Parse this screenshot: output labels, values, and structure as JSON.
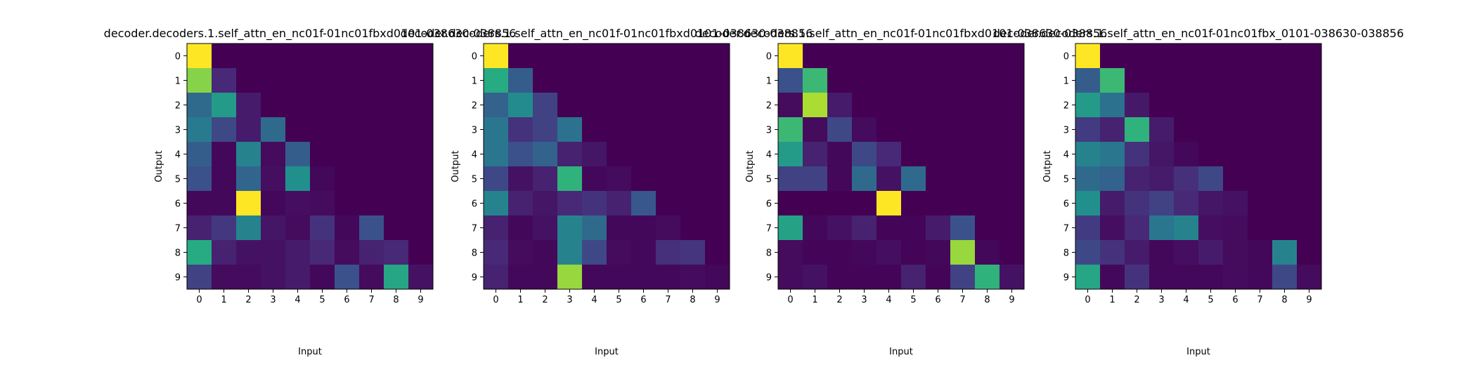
{
  "figure": {
    "panels": [
      {
        "title": "decoder.decoders.1.self_attn_en_nc01f-01nc01fbxd0101-038630-038856",
        "xlabel": "Input",
        "ylabel": "Output"
      },
      {
        "title": "decoder.decoders.1.self_attn_en_nc01f-01nc01fbxd0101-038630-038856",
        "xlabel": "Input",
        "ylabel": "Output"
      },
      {
        "title": "decoder.decoders.1.self_attn_en_nc01f-01nc01fbxd0101-038630-038856",
        "xlabel": "Input",
        "ylabel": "Output"
      },
      {
        "title": "decoder.decoders.1.self_attn_en_nc01f-01nc01fbx_0101-038630-038856",
        "xlabel": "Input",
        "ylabel": "Output"
      }
    ]
  },
  "chart_data": [
    {
      "type": "heatmap",
      "title": "decoder.decoders.1.self_attn_en_nc01f-01nc01fbxd0101-038630-038856",
      "xlabel": "Input",
      "ylabel": "Output",
      "x": [
        0,
        1,
        2,
        3,
        4,
        5,
        6,
        7,
        8,
        9
      ],
      "y": [
        0,
        1,
        2,
        3,
        4,
        5,
        6,
        7,
        8,
        9
      ],
      "colormap": "viridis",
      "values": [
        [
          1.0,
          0.0,
          0.0,
          0.0,
          0.0,
          0.0,
          0.0,
          0.0,
          0.0,
          0.0
        ],
        [
          0.82,
          0.12,
          0.0,
          0.0,
          0.0,
          0.0,
          0.0,
          0.0,
          0.0,
          0.0
        ],
        [
          0.35,
          0.55,
          0.08,
          0.0,
          0.0,
          0.0,
          0.0,
          0.0,
          0.0,
          0.0
        ],
        [
          0.42,
          0.22,
          0.08,
          0.35,
          0.0,
          0.0,
          0.0,
          0.0,
          0.0,
          0.0
        ],
        [
          0.3,
          0.02,
          0.45,
          0.03,
          0.3,
          0.0,
          0.0,
          0.0,
          0.0,
          0.0
        ],
        [
          0.25,
          0.02,
          0.33,
          0.04,
          0.5,
          0.02,
          0.0,
          0.0,
          0.0,
          0.0
        ],
        [
          0.02,
          0.02,
          1.0,
          0.02,
          0.04,
          0.03,
          0.0,
          0.0,
          0.0,
          0.0
        ],
        [
          0.1,
          0.17,
          0.45,
          0.06,
          0.03,
          0.15,
          0.02,
          0.25,
          0.0,
          0.0
        ],
        [
          0.62,
          0.1,
          0.05,
          0.05,
          0.08,
          0.12,
          0.03,
          0.1,
          0.12,
          0.0
        ],
        [
          0.2,
          0.03,
          0.03,
          0.05,
          0.08,
          0.02,
          0.25,
          0.03,
          0.6,
          0.05
        ]
      ]
    },
    {
      "type": "heatmap",
      "title": "decoder.decoders.1.self_attn_en_nc01f-01nc01fbxd0101-038630-038856",
      "xlabel": "Input",
      "ylabel": "Output",
      "x": [
        0,
        1,
        2,
        3,
        4,
        5,
        6,
        7,
        8,
        9
      ],
      "y": [
        0,
        1,
        2,
        3,
        4,
        5,
        6,
        7,
        8,
        9
      ],
      "colormap": "viridis",
      "values": [
        [
          1.0,
          0.0,
          0.0,
          0.0,
          0.0,
          0.0,
          0.0,
          0.0,
          0.0,
          0.0
        ],
        [
          0.62,
          0.3,
          0.0,
          0.0,
          0.0,
          0.0,
          0.0,
          0.0,
          0.0,
          0.0
        ],
        [
          0.32,
          0.48,
          0.2,
          0.0,
          0.0,
          0.0,
          0.0,
          0.0,
          0.0,
          0.0
        ],
        [
          0.4,
          0.15,
          0.2,
          0.38,
          0.0,
          0.0,
          0.0,
          0.0,
          0.0,
          0.0
        ],
        [
          0.4,
          0.25,
          0.32,
          0.1,
          0.06,
          0.0,
          0.0,
          0.0,
          0.0,
          0.0
        ],
        [
          0.22,
          0.05,
          0.1,
          0.65,
          0.02,
          0.03,
          0.0,
          0.0,
          0.0,
          0.0
        ],
        [
          0.45,
          0.1,
          0.06,
          0.12,
          0.15,
          0.1,
          0.28,
          0.0,
          0.0,
          0.0
        ],
        [
          0.1,
          0.02,
          0.05,
          0.45,
          0.35,
          0.02,
          0.02,
          0.03,
          0.0,
          0.0
        ],
        [
          0.12,
          0.03,
          0.02,
          0.45,
          0.22,
          0.03,
          0.02,
          0.14,
          0.16,
          0.0
        ],
        [
          0.1,
          0.02,
          0.02,
          0.85,
          0.02,
          0.02,
          0.02,
          0.02,
          0.03,
          0.02
        ]
      ]
    },
    {
      "type": "heatmap",
      "title": "decoder.decoders.1.self_attn_en_nc01f-01nc01fbxd0101-038630-038856",
      "xlabel": "Input",
      "ylabel": "Output",
      "x": [
        0,
        1,
        2,
        3,
        4,
        5,
        6,
        7,
        8,
        9
      ],
      "y": [
        0,
        1,
        2,
        3,
        4,
        5,
        6,
        7,
        8,
        9
      ],
      "colormap": "viridis",
      "values": [
        [
          1.0,
          0.0,
          0.0,
          0.0,
          0.0,
          0.0,
          0.0,
          0.0,
          0.0,
          0.0
        ],
        [
          0.25,
          0.68,
          0.0,
          0.0,
          0.0,
          0.0,
          0.0,
          0.0,
          0.0,
          0.0
        ],
        [
          0.03,
          0.88,
          0.08,
          0.0,
          0.0,
          0.0,
          0.0,
          0.0,
          0.0,
          0.0
        ],
        [
          0.68,
          0.03,
          0.22,
          0.03,
          0.0,
          0.0,
          0.0,
          0.0,
          0.0,
          0.0
        ],
        [
          0.55,
          0.1,
          0.02,
          0.22,
          0.12,
          0.0,
          0.0,
          0.0,
          0.0,
          0.0
        ],
        [
          0.2,
          0.2,
          0.02,
          0.35,
          0.05,
          0.35,
          0.0,
          0.0,
          0.0,
          0.0
        ],
        [
          0.0,
          0.0,
          0.0,
          0.0,
          1.0,
          0.0,
          0.0,
          0.0,
          0.0,
          0.0
        ],
        [
          0.58,
          0.02,
          0.05,
          0.1,
          0.01,
          0.01,
          0.08,
          0.25,
          0.0,
          0.0
        ],
        [
          0.03,
          0.01,
          0.01,
          0.02,
          0.04,
          0.01,
          0.02,
          0.85,
          0.02,
          0.0
        ],
        [
          0.03,
          0.05,
          0.01,
          0.01,
          0.01,
          0.1,
          0.01,
          0.2,
          0.65,
          0.05
        ]
      ]
    },
    {
      "type": "heatmap",
      "title": "decoder.decoders.1.self_attn_en_nc01f-01nc01fbx_0101-038630-038856",
      "xlabel": "Input",
      "ylabel": "Output",
      "x": [
        0,
        1,
        2,
        3,
        4,
        5,
        6,
        7,
        8,
        9
      ],
      "y": [
        0,
        1,
        2,
        3,
        4,
        5,
        6,
        7,
        8,
        9
      ],
      "colormap": "viridis",
      "values": [
        [
          1.0,
          0.0,
          0.0,
          0.0,
          0.0,
          0.0,
          0.0,
          0.0,
          0.0,
          0.0
        ],
        [
          0.3,
          0.68,
          0.0,
          0.0,
          0.0,
          0.0,
          0.0,
          0.0,
          0.0,
          0.0
        ],
        [
          0.55,
          0.38,
          0.07,
          0.0,
          0.0,
          0.0,
          0.0,
          0.0,
          0.0,
          0.0
        ],
        [
          0.18,
          0.1,
          0.65,
          0.08,
          0.0,
          0.0,
          0.0,
          0.0,
          0.0,
          0.0
        ],
        [
          0.45,
          0.4,
          0.15,
          0.06,
          0.02,
          0.0,
          0.0,
          0.0,
          0.0,
          0.0
        ],
        [
          0.35,
          0.32,
          0.1,
          0.08,
          0.14,
          0.22,
          0.0,
          0.0,
          0.0,
          0.0
        ],
        [
          0.5,
          0.08,
          0.15,
          0.2,
          0.12,
          0.06,
          0.05,
          0.0,
          0.0,
          0.0
        ],
        [
          0.18,
          0.04,
          0.12,
          0.4,
          0.45,
          0.04,
          0.03,
          0.0,
          0.0,
          0.0
        ],
        [
          0.22,
          0.15,
          0.08,
          0.02,
          0.04,
          0.08,
          0.03,
          0.02,
          0.45,
          0.0
        ],
        [
          0.6,
          0.02,
          0.15,
          0.02,
          0.02,
          0.02,
          0.03,
          0.02,
          0.22,
          0.03
        ]
      ]
    }
  ]
}
